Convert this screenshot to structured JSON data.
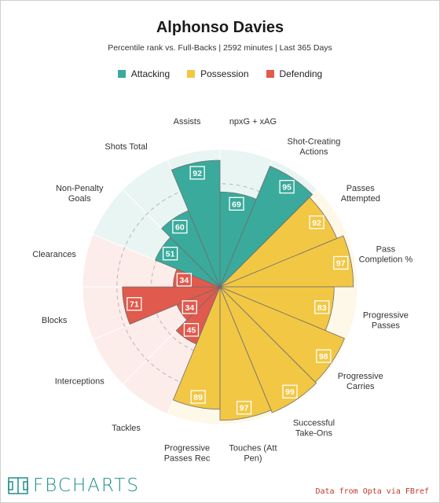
{
  "header": {
    "title": "Alphonso Davies",
    "subtitle": "Percentile rank vs. Full-Backs | 2592 minutes | Last 365 Days"
  },
  "legend": [
    {
      "label": "Attacking",
      "color": "#3aaa9c"
    },
    {
      "label": "Possession",
      "color": "#f2c744"
    },
    {
      "label": "Defending",
      "color": "#e05a4d"
    }
  ],
  "footer": {
    "brand": "FBCHARTS",
    "credit": "Data from Opta via FBref"
  },
  "chart_data": {
    "type": "polar-bar",
    "title": "Alphonso Davies",
    "subtitle": "Percentile rank vs. Full-Backs | 2592 minutes | Last 365 Days",
    "range": [
      0,
      100
    ],
    "grid": "dashed rings",
    "legend_position": "top-center",
    "colors": {
      "Attacking": "#3aaa9c",
      "Possession": "#f2c744",
      "Defending": "#e05a4d",
      "Attacking_bg": "#e8f5f3",
      "Possession_bg": "#fdf8e7",
      "Defending_bg": "#fcecea"
    },
    "metrics": [
      {
        "label": "npxG + xAG",
        "value": 69,
        "group": "Attacking"
      },
      {
        "label": "Shot-Creating Actions",
        "value": 95,
        "group": "Attacking"
      },
      {
        "label": "Passes Attempted",
        "value": 92,
        "group": "Possession"
      },
      {
        "label": "Pass Completion %",
        "value": 97,
        "group": "Possession"
      },
      {
        "label": "Progressive Passes",
        "value": 83,
        "group": "Possession"
      },
      {
        "label": "Progressive Carries",
        "value": 98,
        "group": "Possession"
      },
      {
        "label": "Successful Take-Ons",
        "value": 99,
        "group": "Possession"
      },
      {
        "label": "Touches (Att Pen)",
        "value": 97,
        "group": "Possession"
      },
      {
        "label": "Progressive Passes Rec",
        "value": 89,
        "group": "Possession"
      },
      {
        "label": "Tackles",
        "value": 45,
        "group": "Defending"
      },
      {
        "label": "Interceptions",
        "value": 34,
        "group": "Defending"
      },
      {
        "label": "Blocks",
        "value": 71,
        "group": "Defending"
      },
      {
        "label": "Clearances",
        "value": 34,
        "group": "Defending"
      },
      {
        "label": "Non-Penalty Goals",
        "value": 51,
        "group": "Attacking"
      },
      {
        "label": "Shots Total",
        "value": 60,
        "group": "Attacking"
      },
      {
        "label": "Assists",
        "value": 92,
        "group": "Attacking"
      }
    ],
    "label_lines": [
      [
        "npxG + xAG"
      ],
      [
        "Shot-Creating",
        "Actions"
      ],
      [
        "Passes",
        "Attempted"
      ],
      [
        "Pass",
        "Completion %"
      ],
      [
        "Progressive",
        "Passes"
      ],
      [
        "Progressive",
        "Carries"
      ],
      [
        "Successful",
        "Take-Ons"
      ],
      [
        "Touches (Att",
        "Pen)"
      ],
      [
        "Progressive",
        "Passes Rec"
      ],
      [
        "Tackles"
      ],
      [
        "Interceptions"
      ],
      [
        "Blocks"
      ],
      [
        "Clearances"
      ],
      [
        "Non-Penalty",
        "Goals"
      ],
      [
        "Shots Total"
      ],
      [
        "Assists"
      ]
    ]
  }
}
